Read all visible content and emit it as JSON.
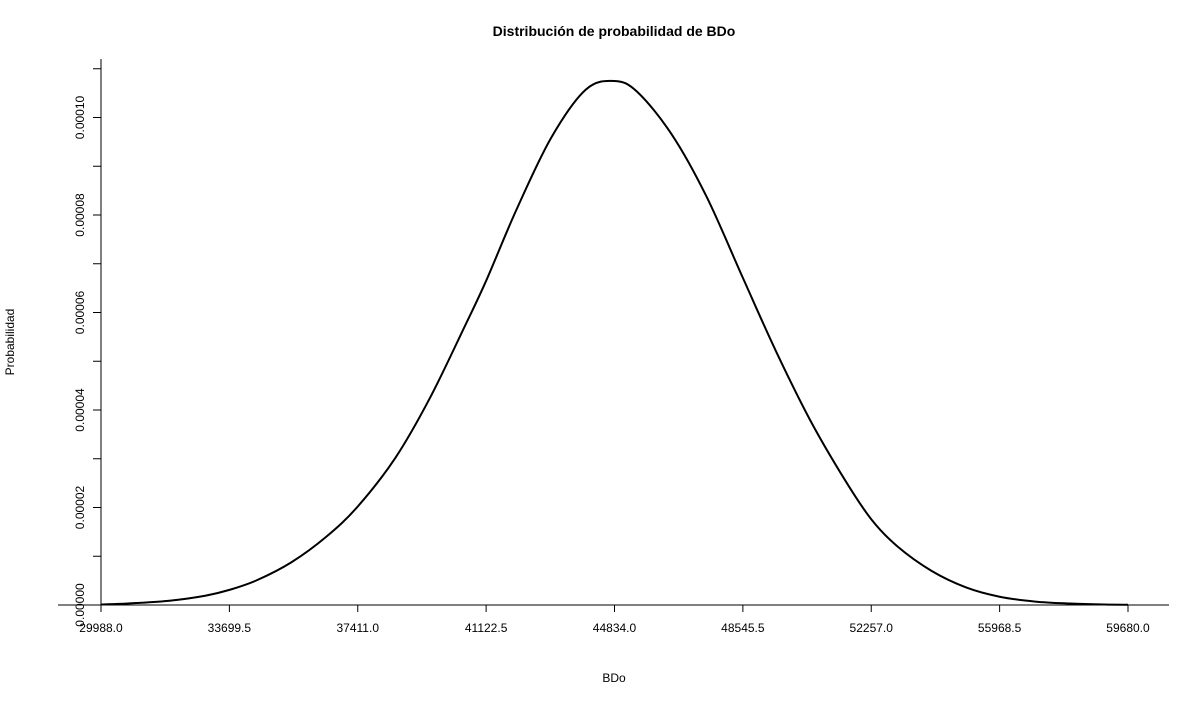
{
  "chart_data": {
    "type": "line",
    "title": "Distribución de probabilidad de BDo",
    "xlabel": "BDo",
    "ylabel": "Probabilidad",
    "xlim": [
      29988.0,
      59680.0
    ],
    "ylim": [
      0,
      0.000112
    ],
    "x_ticks": [
      29988.0,
      33699.5,
      37411.0,
      41122.5,
      44834.0,
      48545.5,
      52257.0,
      55968.5,
      59680.0
    ],
    "x_tick_labels": [
      "29988.0",
      "33699.5",
      "37411.0",
      "41122.5",
      "44834.0",
      "48545.5",
      "52257.0",
      "55968.5",
      "59680.0"
    ],
    "y_ticks_major": [
      0,
      2e-05,
      4e-05,
      6e-05,
      8e-05,
      0.0001
    ],
    "y_tick_labels": [
      "0.00000",
      "0.00002",
      "0.00004",
      "0.00006",
      "0.00008",
      "0.00010"
    ],
    "y_ticks_minor": [
      1e-05,
      3e-05,
      5e-05,
      7e-05,
      9e-05,
      0.00011
    ],
    "grid": false,
    "series": [
      {
        "x": [
          29988,
          31000,
          32000,
          33000,
          33699.5,
          34500,
          35500,
          36500,
          37411,
          38500,
          39500,
          40500,
          41122.5,
          42000,
          43000,
          44000,
          44834,
          45500,
          46500,
          47500,
          48545.5,
          49500,
          50500,
          51500,
          52257,
          53000,
          54000,
          55000,
          55968.5,
          57000,
          58000,
          59000,
          59680
        ],
        "y": [
          1e-07,
          4e-07,
          9e-07,
          1.9e-06,
          3.1e-06,
          5.1e-06,
          8.8e-06,
          1.4e-05,
          2.02e-05,
          3.02e-05,
          4.25e-05,
          5.71e-05,
          6.65e-05,
          8.11e-05,
          9.58e-05,
          0.0001057,
          0.0001075,
          0.0001052,
          9.64e-05,
          8.37e-05,
          6.71e-05,
          5.21e-05,
          3.78e-05,
          2.56e-05,
          1.76e-05,
          1.21e-05,
          7e-06,
          3.6e-06,
          1.7e-06,
          7e-07,
          3e-07,
          1e-07,
          5e-08
        ]
      }
    ],
    "line_color": "#000000"
  }
}
